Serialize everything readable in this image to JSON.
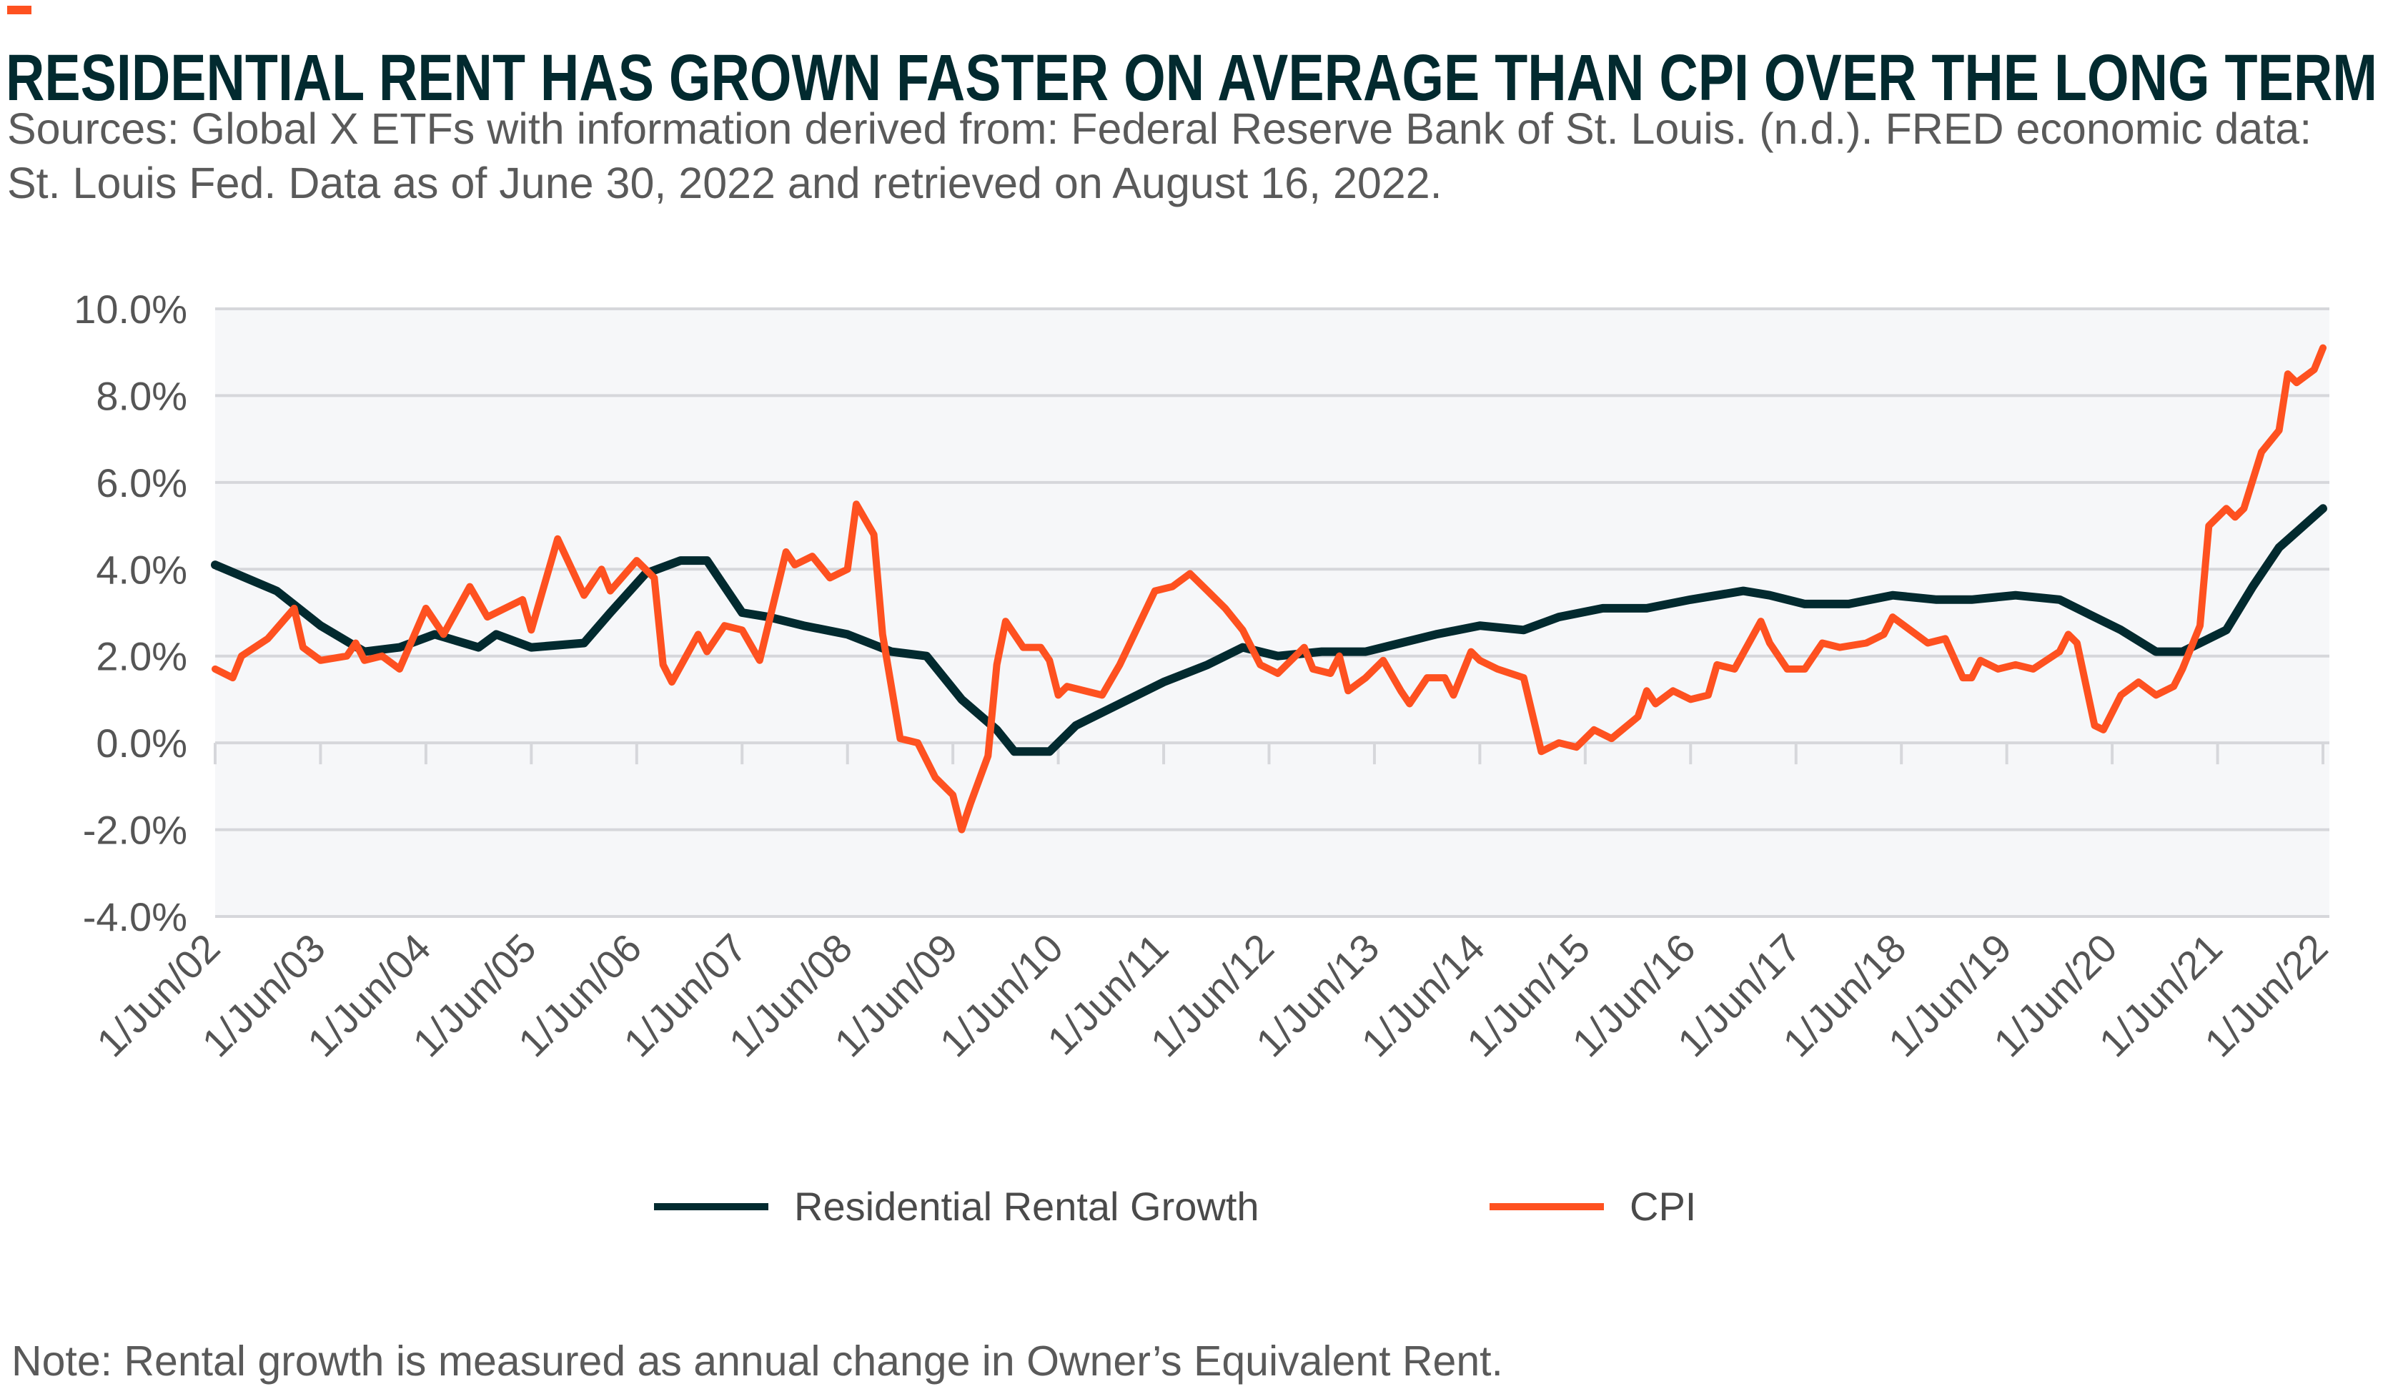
{
  "title": "RESIDENTIAL RENT HAS GROWN FASTER ON AVERAGE THAN CPI OVER THE LONG TERM",
  "subtitle_line1": "Sources: Global X ETFs with information derived from: Federal Reserve Bank of St. Louis. (n.d.). FRED economic data:",
  "subtitle_line2": "St. Louis Fed. Data as of June 30, 2022 and retrieved on August 16, 2022.",
  "note": "Note: Rental growth is measured as annual change in Owner’s Equivalent Rent.",
  "colors": {
    "rent": "#022a2f",
    "cpi": "#fe5120",
    "title": "#022a2f",
    "plot_bg": "#f6f7f9",
    "grid": "#d6d7db"
  },
  "chart_data": {
    "type": "line",
    "title": "RESIDENTIAL RENT HAS GROWN FASTER ON AVERAGE THAN CPI OVER THE LONG TERM",
    "xlabel": "",
    "ylabel": "",
    "ylim": [
      -4.0,
      10.0
    ],
    "y_ticks": [
      "10.0%",
      "8.0%",
      "6.0%",
      "4.0%",
      "2.0%",
      "0.0%",
      "-2.0%",
      "-4.0%"
    ],
    "y_tick_values": [
      10,
      8,
      6,
      4,
      2,
      0,
      -2,
      -4
    ],
    "x_range": [
      "2002-06",
      "2022-06"
    ],
    "x_ticks": [
      "1/Jun/02",
      "1/Jun/03",
      "1/Jun/04",
      "1/Jun/05",
      "1/Jun/06",
      "1/Jun/07",
      "1/Jun/08",
      "1/Jun/09",
      "1/Jun/10",
      "1/Jun/11",
      "1/Jun/12",
      "1/Jun/13",
      "1/Jun/14",
      "1/Jun/15",
      "1/Jun/16",
      "1/Jun/17",
      "1/Jun/18",
      "1/Jun/19",
      "1/Jun/20",
      "1/Jun/21",
      "1/Jun/22"
    ],
    "grid": "horizontal",
    "legend_position": "bottom",
    "series": [
      {
        "name": "Residential Rental Growth",
        "color": "#022a2f",
        "points": [
          [
            "2002-06",
            4.1
          ],
          [
            "2003-01",
            3.5
          ],
          [
            "2003-06",
            2.7
          ],
          [
            "2003-11",
            2.1
          ],
          [
            "2004-03",
            2.2
          ],
          [
            "2004-07",
            2.5
          ],
          [
            "2004-12",
            2.2
          ],
          [
            "2005-02",
            2.5
          ],
          [
            "2005-06",
            2.2
          ],
          [
            "2005-12",
            2.3
          ],
          [
            "2006-03",
            3.0
          ],
          [
            "2006-07",
            3.9
          ],
          [
            "2006-11",
            4.2
          ],
          [
            "2007-02",
            4.2
          ],
          [
            "2007-06",
            3.0
          ],
          [
            "2007-09",
            2.9
          ],
          [
            "2008-01",
            2.7
          ],
          [
            "2008-06",
            2.5
          ],
          [
            "2008-11",
            2.1
          ],
          [
            "2009-03",
            2.0
          ],
          [
            "2009-07",
            1.0
          ],
          [
            "2009-11",
            0.3
          ],
          [
            "2010-01",
            -0.2
          ],
          [
            "2010-05",
            -0.2
          ],
          [
            "2010-08",
            0.4
          ],
          [
            "2011-01",
            0.9
          ],
          [
            "2011-06",
            1.4
          ],
          [
            "2011-11",
            1.8
          ],
          [
            "2012-03",
            2.2
          ],
          [
            "2012-07",
            2.0
          ],
          [
            "2012-12",
            2.1
          ],
          [
            "2013-05",
            2.1
          ],
          [
            "2013-09",
            2.3
          ],
          [
            "2014-01",
            2.5
          ],
          [
            "2014-06",
            2.7
          ],
          [
            "2014-11",
            2.6
          ],
          [
            "2015-03",
            2.9
          ],
          [
            "2015-08",
            3.1
          ],
          [
            "2016-01",
            3.1
          ],
          [
            "2016-06",
            3.3
          ],
          [
            "2016-12",
            3.5
          ],
          [
            "2017-03",
            3.4
          ],
          [
            "2017-07",
            3.2
          ],
          [
            "2017-12",
            3.2
          ],
          [
            "2018-05",
            3.4
          ],
          [
            "2018-10",
            3.3
          ],
          [
            "2019-02",
            3.3
          ],
          [
            "2019-07",
            3.4
          ],
          [
            "2019-12",
            3.3
          ],
          [
            "2020-03",
            3.0
          ],
          [
            "2020-07",
            2.6
          ],
          [
            "2020-11",
            2.1
          ],
          [
            "2021-02",
            2.1
          ],
          [
            "2021-07",
            2.6
          ],
          [
            "2021-10",
            3.6
          ],
          [
            "2022-01",
            4.5
          ],
          [
            "2022-06",
            5.4
          ]
        ]
      },
      {
        "name": "CPI",
        "color": "#fe5120",
        "points": [
          [
            "2002-06",
            1.7
          ],
          [
            "2002-08",
            1.5
          ],
          [
            "2002-09",
            2.0
          ],
          [
            "2002-12",
            2.4
          ],
          [
            "2003-03",
            3.1
          ],
          [
            "2003-04",
            2.2
          ],
          [
            "2003-06",
            1.9
          ],
          [
            "2003-09",
            2.0
          ],
          [
            "2003-10",
            2.3
          ],
          [
            "2003-11",
            1.9
          ],
          [
            "2004-01",
            2.0
          ],
          [
            "2004-03",
            1.7
          ],
          [
            "2004-06",
            3.1
          ],
          [
            "2004-08",
            2.5
          ],
          [
            "2004-11",
            3.6
          ],
          [
            "2005-01",
            2.9
          ],
          [
            "2005-05",
            3.3
          ],
          [
            "2005-06",
            2.6
          ],
          [
            "2005-09",
            4.7
          ],
          [
            "2005-12",
            3.4
          ],
          [
            "2006-02",
            4.0
          ],
          [
            "2006-03",
            3.5
          ],
          [
            "2006-06",
            4.2
          ],
          [
            "2006-08",
            3.8
          ],
          [
            "2006-09",
            1.8
          ],
          [
            "2006-10",
            1.4
          ],
          [
            "2007-01",
            2.5
          ],
          [
            "2007-02",
            2.1
          ],
          [
            "2007-04",
            2.7
          ],
          [
            "2007-06",
            2.6
          ],
          [
            "2007-08",
            1.9
          ],
          [
            "2007-11",
            4.4
          ],
          [
            "2007-12",
            4.1
          ],
          [
            "2008-02",
            4.3
          ],
          [
            "2008-04",
            3.8
          ],
          [
            "2008-06",
            4.0
          ],
          [
            "2008-07",
            5.5
          ],
          [
            "2008-09",
            4.8
          ],
          [
            "2008-10",
            2.5
          ],
          [
            "2008-12",
            0.1
          ],
          [
            "2009-02",
            0.0
          ],
          [
            "2009-04",
            -0.8
          ],
          [
            "2009-06",
            -1.2
          ],
          [
            "2009-07",
            -2.0
          ],
          [
            "2009-08",
            -1.4
          ],
          [
            "2009-10",
            -0.3
          ],
          [
            "2009-11",
            1.8
          ],
          [
            "2009-12",
            2.8
          ],
          [
            "2010-02",
            2.2
          ],
          [
            "2010-04",
            2.2
          ],
          [
            "2010-05",
            1.9
          ],
          [
            "2010-06",
            1.1
          ],
          [
            "2010-07",
            1.3
          ],
          [
            "2010-11",
            1.1
          ],
          [
            "2011-01",
            1.8
          ],
          [
            "2011-05",
            3.5
          ],
          [
            "2011-07",
            3.6
          ],
          [
            "2011-09",
            3.9
          ],
          [
            "2011-11",
            3.5
          ],
          [
            "2012-01",
            3.1
          ],
          [
            "2012-03",
            2.6
          ],
          [
            "2012-05",
            1.8
          ],
          [
            "2012-07",
            1.6
          ],
          [
            "2012-10",
            2.2
          ],
          [
            "2012-11",
            1.7
          ],
          [
            "2013-01",
            1.6
          ],
          [
            "2013-02",
            2.0
          ],
          [
            "2013-03",
            1.2
          ],
          [
            "2013-05",
            1.5
          ],
          [
            "2013-07",
            1.9
          ],
          [
            "2013-09",
            1.2
          ],
          [
            "2013-10",
            0.9
          ],
          [
            "2013-12",
            1.5
          ],
          [
            "2014-02",
            1.5
          ],
          [
            "2014-03",
            1.1
          ],
          [
            "2014-05",
            2.1
          ],
          [
            "2014-06",
            1.9
          ],
          [
            "2014-08",
            1.7
          ],
          [
            "2014-11",
            1.5
          ],
          [
            "2015-01",
            -0.2
          ],
          [
            "2015-03",
            0.0
          ],
          [
            "2015-05",
            -0.1
          ],
          [
            "2015-07",
            0.3
          ],
          [
            "2015-09",
            0.1
          ],
          [
            "2015-12",
            0.6
          ],
          [
            "2016-01",
            1.2
          ],
          [
            "2016-02",
            0.9
          ],
          [
            "2016-04",
            1.2
          ],
          [
            "2016-06",
            1.0
          ],
          [
            "2016-08",
            1.1
          ],
          [
            "2016-09",
            1.8
          ],
          [
            "2016-11",
            1.7
          ],
          [
            "2017-02",
            2.8
          ],
          [
            "2017-03",
            2.3
          ],
          [
            "2017-05",
            1.7
          ],
          [
            "2017-07",
            1.7
          ],
          [
            "2017-09",
            2.3
          ],
          [
            "2017-11",
            2.2
          ],
          [
            "2018-02",
            2.3
          ],
          [
            "2018-04",
            2.5
          ],
          [
            "2018-05",
            2.9
          ],
          [
            "2018-07",
            2.6
          ],
          [
            "2018-09",
            2.3
          ],
          [
            "2018-11",
            2.4
          ],
          [
            "2019-01",
            1.5
          ],
          [
            "2019-02",
            1.5
          ],
          [
            "2019-03",
            1.9
          ],
          [
            "2019-05",
            1.7
          ],
          [
            "2019-07",
            1.8
          ],
          [
            "2019-09",
            1.7
          ],
          [
            "2019-12",
            2.1
          ],
          [
            "2020-01",
            2.5
          ],
          [
            "2020-02",
            2.3
          ],
          [
            "2020-04",
            0.4
          ],
          [
            "2020-05",
            0.3
          ],
          [
            "2020-07",
            1.1
          ],
          [
            "2020-09",
            1.4
          ],
          [
            "2020-11",
            1.1
          ],
          [
            "2021-01",
            1.3
          ],
          [
            "2021-02",
            1.7
          ],
          [
            "2021-04",
            2.7
          ],
          [
            "2021-05",
            5.0
          ],
          [
            "2021-07",
            5.4
          ],
          [
            "2021-08",
            5.2
          ],
          [
            "2021-09",
            5.4
          ],
          [
            "2021-11",
            6.7
          ],
          [
            "2022-01",
            7.2
          ],
          [
            "2022-02",
            8.5
          ],
          [
            "2022-03",
            8.3
          ],
          [
            "2022-05",
            8.6
          ],
          [
            "2022-06",
            9.1
          ]
        ]
      }
    ]
  }
}
